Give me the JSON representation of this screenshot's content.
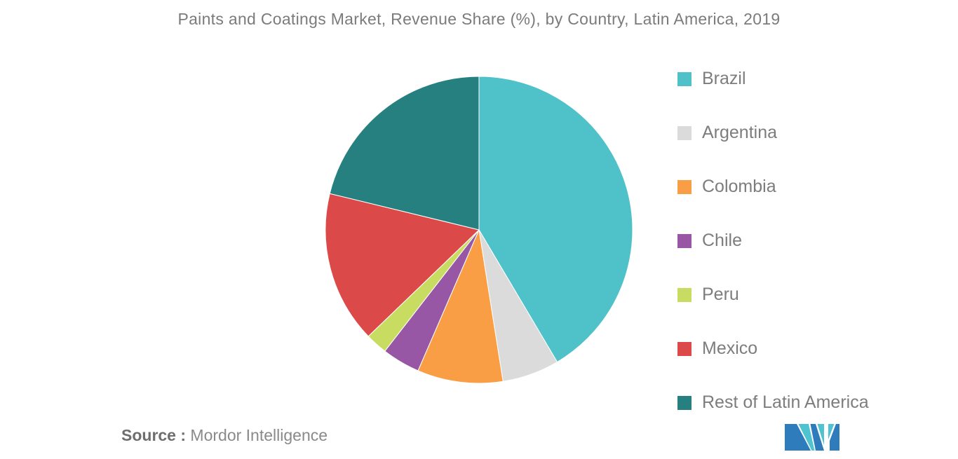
{
  "title": "Paints and Coatings Market, Revenue Share (%), by Country, Latin America, 2019",
  "source": {
    "label": "Source :",
    "text": " Mordor Intelligence"
  },
  "chart_data": {
    "type": "pie",
    "title": "Paints and Coatings Market, Revenue Share (%), by Country, Latin America, 2019",
    "categories": [
      "Brazil",
      "Argentina",
      "Colombia",
      "Chile",
      "Peru",
      "Mexico",
      "Rest of Latin America"
    ],
    "values": [
      41.5,
      6.0,
      9.0,
      4.0,
      2.3,
      16.0,
      21.2
    ],
    "unit": "%",
    "colors": [
      "#4FC2C9",
      "#DBDBDB",
      "#FA9E45",
      "#9857A4",
      "#C8DC61",
      "#DB4A49",
      "#26807F"
    ],
    "legend_position": "right",
    "start_angle_deg": 0,
    "direction": "clockwise",
    "slice_border_color": "#ffffff"
  },
  "logo": {
    "name": "mordor-intelligence-logo",
    "colors": {
      "blue": "#2E7CBB",
      "teal": "#4FC3CF"
    }
  }
}
